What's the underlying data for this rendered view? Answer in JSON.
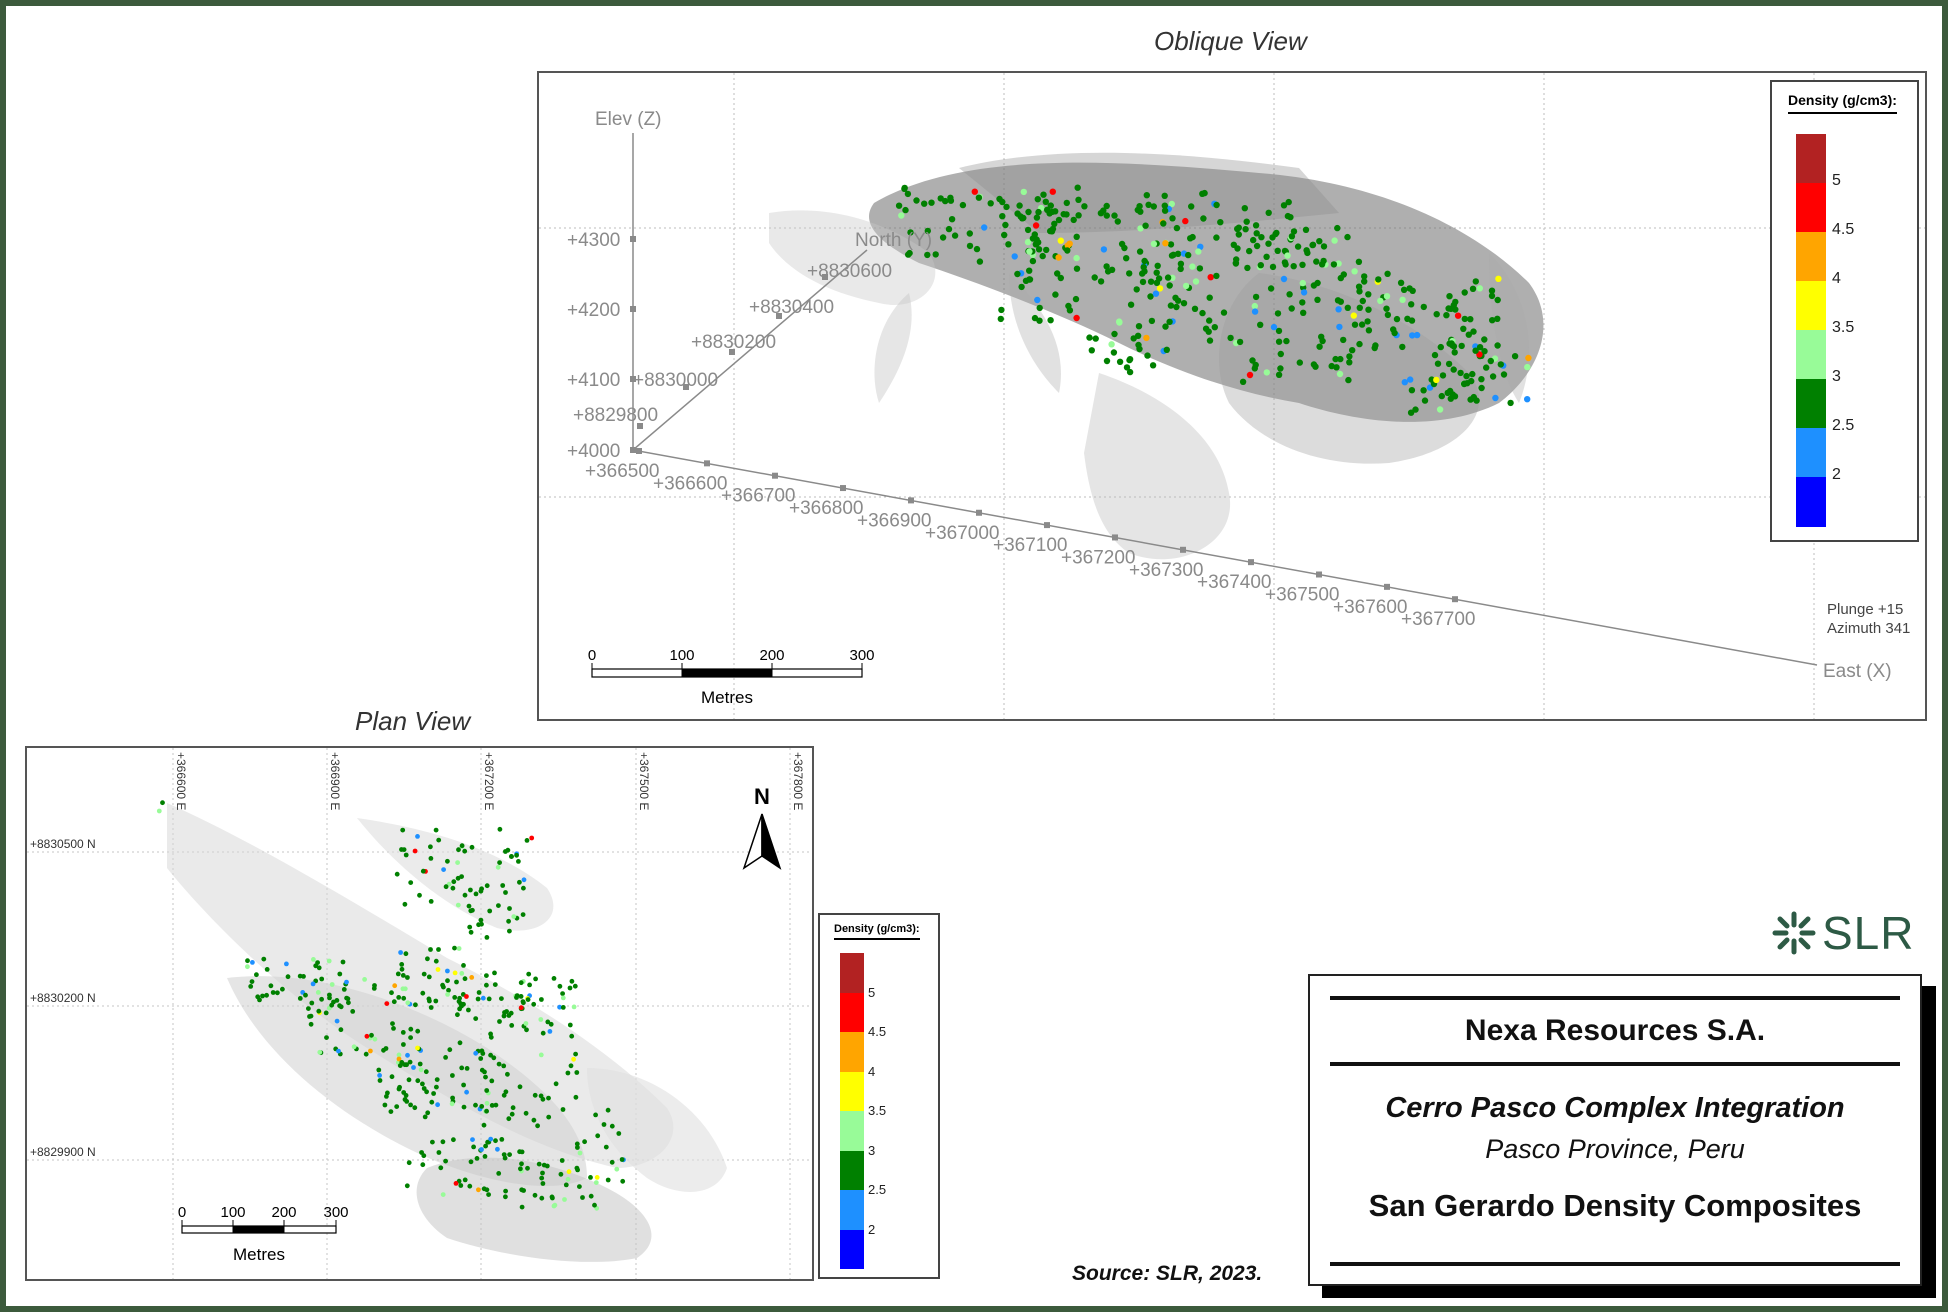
{
  "oblique": {
    "title": "Oblique View",
    "axis_elev": "Elev (Z)",
    "axis_north": "North (Y)",
    "axis_east": "East (X)",
    "elev_ticks": [
      "+4300",
      "+4200",
      "+4100",
      "+4000"
    ],
    "north_ticks": [
      "+8830600",
      "+8830400",
      "+8830200",
      "+8830000",
      "+8829800"
    ],
    "east_ticks": [
      "+366500",
      "+366600",
      "+366700",
      "+366800",
      "+366900",
      "+367000",
      "+367100",
      "+367200",
      "+367300",
      "+367400",
      "+367500",
      "+367600",
      "+367700"
    ],
    "plunge": "Plunge +15",
    "azimuth": "Azimuth 341",
    "scale_ticks": [
      "0",
      "100",
      "200",
      "300"
    ],
    "scale_unit": "Metres"
  },
  "plan": {
    "title": "Plan View",
    "east_ticks": [
      "+366600 E",
      "+366900 E",
      "+367200 E",
      "+367500 E",
      "+367800 E"
    ],
    "north_ticks": [
      "+8830500 N",
      "+8830200 N",
      "+8829900 N"
    ],
    "north_arrow": "N",
    "scale_ticks": [
      "0",
      "100",
      "200",
      "300"
    ],
    "scale_unit": "Metres"
  },
  "legend": {
    "title": "Density (g/cm3):",
    "labels": [
      "5",
      "4.5",
      "4",
      "3.5",
      "3",
      "2.5",
      "2"
    ],
    "colors": [
      "#b22222",
      "#ff0000",
      "#ffa500",
      "#ffff00",
      "#98fb98",
      "#008000",
      "#1e90ff",
      "#0000ff"
    ]
  },
  "title_block": {
    "company": "Nexa Resources S.A.",
    "project": "Cerro Pasco Complex Integration",
    "location": "Pasco Province, Peru",
    "figure": "San Gerardo Density Composites"
  },
  "source": "Source:  SLR, 2023.",
  "logo": {
    "text": "SLR",
    "color": "#2d5a45"
  }
}
